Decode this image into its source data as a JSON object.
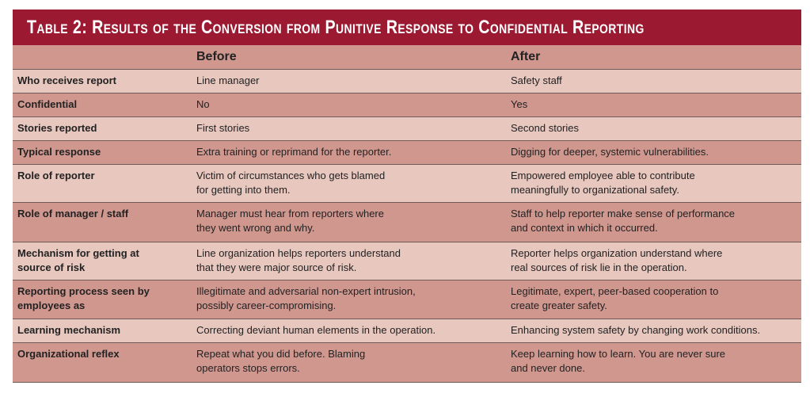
{
  "title": "Table 2: Results of the Conversion from Punitive Response to Confidential Reporting",
  "columns": [
    "",
    "Before",
    "After"
  ],
  "rows": [
    {
      "label": "Who receives report",
      "before": "Line manager",
      "after": "Safety staff"
    },
    {
      "label": "Confidential",
      "before": "No",
      "after": "Yes"
    },
    {
      "label": "Stories reported",
      "before": "First stories",
      "after": "Second stories"
    },
    {
      "label": "Typical response",
      "before": "Extra training or reprimand for the reporter.",
      "after": "Digging for deeper, systemic vulnerabilities."
    },
    {
      "label": "Role of reporter",
      "before": "Victim of circumstances who gets blamed\nfor getting into them.",
      "after": "Empowered employee able to contribute\nmeaningfully to organizational safety."
    },
    {
      "label": "Role of manager / staff",
      "before": "Manager must hear from reporters where\nthey went wrong and why.",
      "after": "Staff to help reporter make sense of performance\nand context in which it occurred."
    },
    {
      "label": "Mechanism for getting at\nsource of risk",
      "before": "Line organization helps reporters understand\nthat they were major source of risk.",
      "after": "Reporter helps organization understand where\nreal sources of risk lie in the operation."
    },
    {
      "label": "Reporting process seen by\nemployees as",
      "before": "Illegitimate and adversarial non-expert intrusion,\npossibly career-compromising.",
      "after": "Legitimate, expert, peer-based cooperation to\ncreate greater safety."
    },
    {
      "label": "Learning mechanism",
      "before": "Correcting deviant human elements in the operation.",
      "after": "Enhancing system safety by changing work conditions."
    },
    {
      "label": "Organizational reflex",
      "before": "Repeat what you did before. Blaming\noperators stops errors.",
      "after": "Keep learning how to learn. You are never sure\nand never done."
    }
  ]
}
